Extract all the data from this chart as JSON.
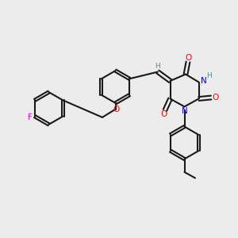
{
  "bg_color": "#ececec",
  "bond_color": "#1a1a1a",
  "bond_width": 1.5,
  "atom_colors": {
    "O": "#ff0000",
    "N": "#0000ff",
    "F": "#ff00ff",
    "H": "#4a9090",
    "C": "#1a1a1a"
  },
  "font_size": 7.5,
  "font_size_small": 6.5
}
